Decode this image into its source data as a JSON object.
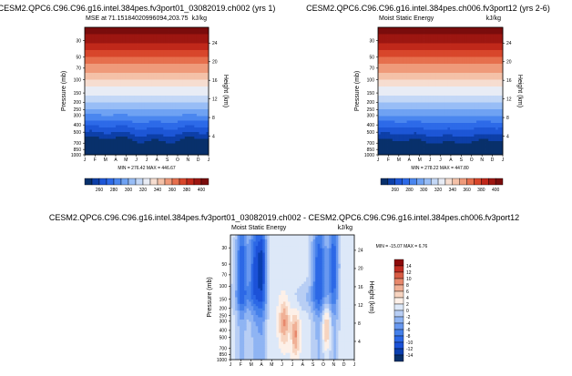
{
  "chart_data": [
    {
      "type": "heatmap",
      "title": "CESM2.QPC6.C96.C96.g16.intel.384pes.fv3port01_03082019.ch002 (yrs 1)",
      "subtitle_left": "MSE at 71.15184020996094,203.75",
      "subtitle_right": "kJ/kg",
      "ylabel": "Pressure (mb)",
      "ylabel_right": "Height (km)",
      "x_ticks": [
        "J",
        "F",
        "M",
        "A",
        "M",
        "J",
        "J",
        "A",
        "S",
        "O",
        "N",
        "D",
        "J"
      ],
      "y_ticks": [
        "30",
        "50",
        "70",
        "100",
        "150",
        "200",
        "250",
        "300",
        "400",
        "500",
        "700",
        "850",
        "1000"
      ],
      "y_ticks_right": [
        "24",
        "20",
        "16",
        "12",
        "8",
        "4"
      ],
      "min": 276.42,
      "max": 446.67,
      "minmax_label": "MIN = 276.42  MAX = 446.67",
      "colorbar": {
        "orientation": "horizontal",
        "levels": [
          "260",
          "280",
          "300",
          "320",
          "340",
          "360",
          "380",
          "400"
        ],
        "range": [
          260,
          410
        ]
      }
    },
    {
      "type": "heatmap",
      "title": "CESM2.QPC6.C96.C96.g16.intel.384pes.ch006.fv3port12 (yrs 2-6)",
      "subtitle_left": "Moist Static Energy",
      "subtitle_right": "kJ/kg",
      "ylabel": "Pressure (mb)",
      "ylabel_right": "Height (km)",
      "x_ticks": [
        "J",
        "F",
        "M",
        "A",
        "M",
        "J",
        "J",
        "A",
        "S",
        "O",
        "N",
        "D",
        "J"
      ],
      "y_ticks": [
        "30",
        "50",
        "70",
        "100",
        "150",
        "200",
        "250",
        "300",
        "400",
        "500",
        "700",
        "850",
        "1000"
      ],
      "y_ticks_right": [
        "24",
        "20",
        "16",
        "12",
        "8",
        "4"
      ],
      "min": 278.22,
      "max": 447.8,
      "minmax_label": "MIN = 278.22  MAX = 447.80",
      "colorbar": {
        "orientation": "horizontal",
        "levels": [
          "260",
          "280",
          "300",
          "320",
          "340",
          "360",
          "380",
          "400"
        ],
        "range": [
          260,
          410
        ]
      }
    },
    {
      "type": "heatmap",
      "title": "CESM2.QPC6.C96.C96.g16.intel.384pes.fv3port01_03082019.ch002 - CESM2.QPC6.C96.C96.g16.intel.384pes.ch006.fv3port12",
      "subtitle_left": "Moist Static Energy",
      "subtitle_right": "kJ/kg",
      "ylabel": "Pressure (mb)",
      "ylabel_right": "Height (km)",
      "x_ticks": [
        "J",
        "F",
        "M",
        "A",
        "M",
        "J",
        "J",
        "A",
        "S",
        "O",
        "N",
        "D",
        "J"
      ],
      "y_ticks": [
        "30",
        "50",
        "70",
        "100",
        "150",
        "200",
        "250",
        "300",
        "400",
        "500",
        "700",
        "850",
        "1000"
      ],
      "y_ticks_right": [
        "24",
        "20",
        "16",
        "12",
        "8",
        "4"
      ],
      "min": -15.07,
      "max": 6.76,
      "minmax_label": "MIN = -15.07  MAX =   6.76",
      "colorbar": {
        "orientation": "vertical",
        "levels": [
          "14",
          "12",
          "10",
          "8",
          "6",
          "4",
          "2",
          "0",
          "-2",
          "-4",
          "-6",
          "-8",
          "-10",
          "-12",
          "-14"
        ],
        "range": [
          -16,
          16
        ]
      }
    }
  ]
}
